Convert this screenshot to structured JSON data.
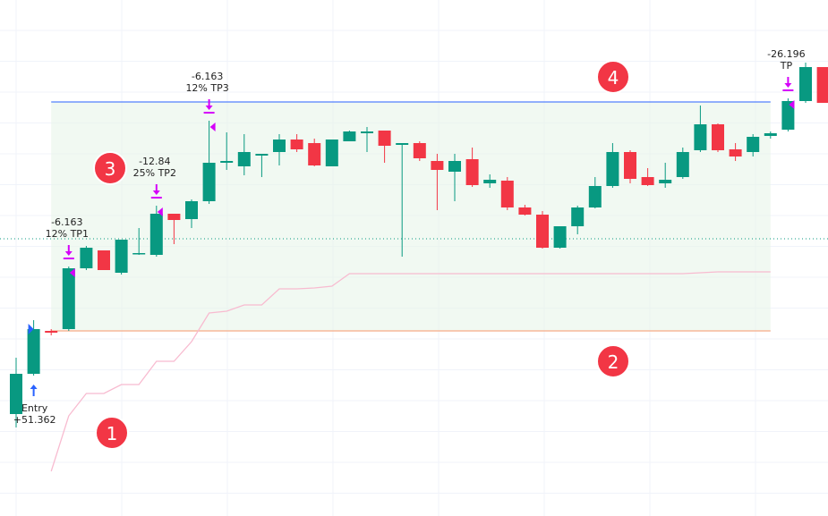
{
  "chart_data": {
    "type": "candlestick",
    "ylim": [
      2.3,
      60
    ],
    "up_color": "#089981",
    "down_color": "#f23645",
    "series": [
      {
        "open": [
          13.7,
          18.2,
          23.0,
          23.2,
          30.0,
          32.0,
          29.5,
          31.7,
          31.5,
          36.1,
          35.5,
          37.5,
          41.8,
          41.4,
          42.6,
          43.0,
          44.4,
          44.0,
          41.4,
          44.2,
          45.1,
          45.4,
          43.8,
          44.0,
          42.0,
          40.8,
          42.2,
          39.5,
          39.8,
          36.8,
          36.0,
          32.3,
          34.7,
          36.8,
          39.2,
          43.0,
          40.2,
          39.5,
          40.2,
          43.2,
          46.1,
          43.3,
          43.0,
          44.8,
          45.5,
          48.7,
          52.5
        ],
        "high": [
          20.0,
          24.2,
          23.2,
          30.2,
          32.5,
          32.0,
          33.2,
          34.5,
          37.0,
          36.1,
          37.7,
          46.5,
          45.2,
          45.0,
          42.8,
          45.0,
          45.0,
          44.5,
          44.4,
          45.4,
          45.8,
          45.4,
          44.0,
          44.2,
          42.8,
          42.8,
          43.5,
          40.5,
          40.2,
          37.1,
          36.4,
          34.7,
          37.0,
          40.2,
          44.0,
          43.2,
          41.2,
          41.8,
          43.5,
          48.2,
          46.2,
          44.0,
          45.0,
          45.3,
          49.0,
          53.0,
          52.5
        ],
        "low": [
          12.2,
          18.0,
          22.5,
          23.0,
          29.8,
          29.8,
          29.3,
          31.5,
          31.3,
          32.7,
          34.5,
          37.2,
          41.0,
          40.4,
          40.2,
          41.5,
          43.0,
          41.4,
          41.4,
          44.2,
          43.0,
          41.8,
          31.3,
          42.0,
          36.5,
          37.5,
          39.1,
          39.0,
          36.5,
          35.9,
          32.2,
          32.2,
          33.8,
          36.7,
          39.0,
          39.5,
          39.2,
          39.0,
          40.0,
          43.0,
          43.0,
          42.0,
          42.5,
          44.5,
          45.3,
          48.5,
          48.5
        ],
        "close": [
          18.2,
          23.2,
          22.8,
          30.0,
          32.3,
          29.8,
          33.2,
          31.7,
          36.1,
          35.4,
          37.5,
          41.8,
          42.0,
          43.0,
          42.8,
          44.4,
          43.3,
          41.5,
          44.4,
          45.3,
          45.3,
          43.7,
          44.0,
          42.3,
          41.0,
          42.0,
          39.3,
          39.9,
          36.8,
          36.0,
          32.3,
          34.7,
          36.8,
          39.2,
          43.0,
          40.0,
          39.3,
          39.9,
          43.0,
          46.1,
          43.2,
          42.5,
          44.7,
          45.1,
          48.7,
          52.5,
          48.5
        ]
      }
    ],
    "trail": {
      "color": "#f8bbd0",
      "values": [
        null,
        null,
        7.3,
        13.5,
        16.0,
        16.0,
        17.0,
        17.0,
        19.6,
        19.6,
        21.8,
        25.0,
        25.2,
        25.9,
        25.9,
        27.7,
        27.7,
        27.8,
        28.0,
        29.4,
        29.4,
        29.4,
        29.4,
        29.4,
        29.4,
        29.4,
        29.4,
        29.4,
        29.4,
        29.4,
        29.4,
        29.4,
        29.4,
        29.4,
        29.4,
        29.4,
        29.4,
        29.4,
        29.4,
        29.5,
        29.6,
        29.6,
        29.6,
        29.6,
        null,
        null,
        null
      ]
    },
    "levels": {
      "target": 48.6,
      "stop": 23.0,
      "last": 33.3
    },
    "annotations": [
      {
        "lines": [
          "Entry",
          "+51.362"
        ]
      },
      {
        "lines": [
          "-6.163",
          "12% TP1"
        ]
      },
      {
        "lines": [
          "-12.84",
          "25% TP2"
        ]
      },
      {
        "lines": [
          "-6.163",
          "12% TP3"
        ]
      },
      {
        "lines": [
          "-26.196",
          "TP"
        ]
      }
    ],
    "badges": [
      "1",
      "2",
      "3",
      "4"
    ]
  }
}
